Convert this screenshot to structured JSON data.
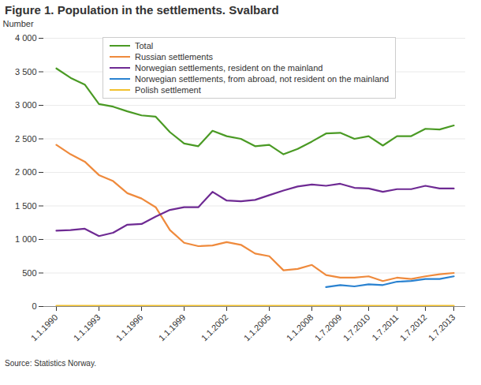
{
  "chart_data": {
    "type": "line",
    "title": "Figure 1. Population in the settlements. Svalbard",
    "y_label": "Number",
    "source": "Source: Statistics Norway.",
    "categories": [
      "1.1.1990",
      null,
      null,
      "1.1.1993",
      null,
      null,
      "1.1.1996",
      null,
      null,
      "1.1.1999",
      null,
      null,
      "1.1.2002",
      null,
      null,
      "1.1.2005",
      null,
      null,
      "1.1.2008",
      null,
      "1.7.2009",
      null,
      "1.7.2010",
      null,
      "1.7.2011",
      null,
      "1.7.2012",
      null,
      "1.7.2013"
    ],
    "series": [
      {
        "name": "Total",
        "color": "#4a9a24",
        "values": [
          3550,
          3410,
          3310,
          3020,
          2980,
          2910,
          2850,
          2830,
          2600,
          2430,
          2390,
          2620,
          2540,
          2500,
          2390,
          2410,
          2270,
          2350,
          2460,
          2580,
          2590,
          2500,
          2540,
          2400,
          2540,
          2540,
          2650,
          2640,
          2700
        ]
      },
      {
        "name": "Russian settlements",
        "color": "#ef8a3c",
        "values": [
          2410,
          2270,
          2160,
          1960,
          1870,
          1690,
          1610,
          1480,
          1140,
          950,
          900,
          910,
          960,
          920,
          790,
          750,
          540,
          560,
          620,
          470,
          430,
          430,
          450,
          380,
          430,
          410,
          450,
          480,
          500
        ]
      },
      {
        "name": "Norwegian settlements, resident on the mainland",
        "color": "#6e2a93",
        "values": [
          1130,
          1140,
          1160,
          1050,
          1100,
          1220,
          1230,
          1340,
          1440,
          1480,
          1480,
          1710,
          1580,
          1570,
          1590,
          1660,
          1730,
          1790,
          1820,
          1800,
          1830,
          1770,
          1760,
          1710,
          1750,
          1750,
          1800,
          1760,
          1760
        ]
      },
      {
        "name": "Norwegian settlements, from abroad, not resident on the mainland",
        "color": "#2a82d0",
        "values": [
          null,
          null,
          null,
          null,
          null,
          null,
          null,
          null,
          null,
          null,
          null,
          null,
          null,
          null,
          null,
          null,
          null,
          null,
          null,
          290,
          320,
          300,
          330,
          320,
          370,
          380,
          410,
          410,
          450
        ]
      },
      {
        "name": "Polish settlement",
        "color": "#f2c12e",
        "values": [
          10,
          10,
          10,
          10,
          10,
          10,
          10,
          10,
          10,
          10,
          10,
          10,
          10,
          10,
          10,
          10,
          10,
          10,
          10,
          10,
          10,
          10,
          10,
          10,
          10,
          10,
          10,
          10,
          10
        ]
      }
    ],
    "ylim": [
      0,
      4000
    ],
    "yticks": [
      0,
      500,
      {
        "value": 1000,
        "label": "1 000"
      },
      {
        "value": 1500,
        "label": "1 500"
      },
      {
        "value": 2000,
        "label": "2 000"
      },
      {
        "value": 2500,
        "label": "2 500"
      },
      {
        "value": 3000,
        "label": "3 000"
      },
      {
        "value": 3500,
        "label": "3 500"
      },
      {
        "value": 4000,
        "label": "4 000"
      }
    ],
    "grid": true,
    "legend": "top-left"
  }
}
